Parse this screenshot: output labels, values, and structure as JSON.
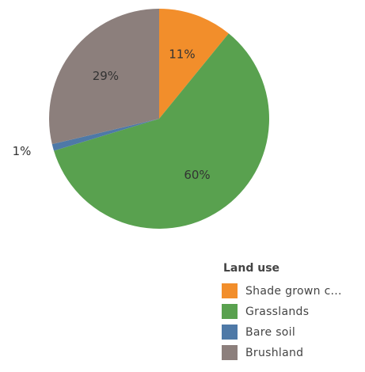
{
  "chart_data": {
    "type": "pie",
    "slices": [
      {
        "name": "Shade grown c...",
        "value": 11,
        "label": "11%",
        "color": "#F28E2B"
      },
      {
        "name": "Grasslands",
        "value": 60,
        "label": "60%",
        "color": "#59A14F"
      },
      {
        "name": "Bare soil",
        "value": 1,
        "label": "1%",
        "color": "#4E79A7"
      },
      {
        "name": "Brushland",
        "value": 29,
        "label": "29%",
        "color": "#8C7F7C"
      }
    ],
    "legend": {
      "title": "Land use",
      "placement": "bottom-right"
    }
  }
}
